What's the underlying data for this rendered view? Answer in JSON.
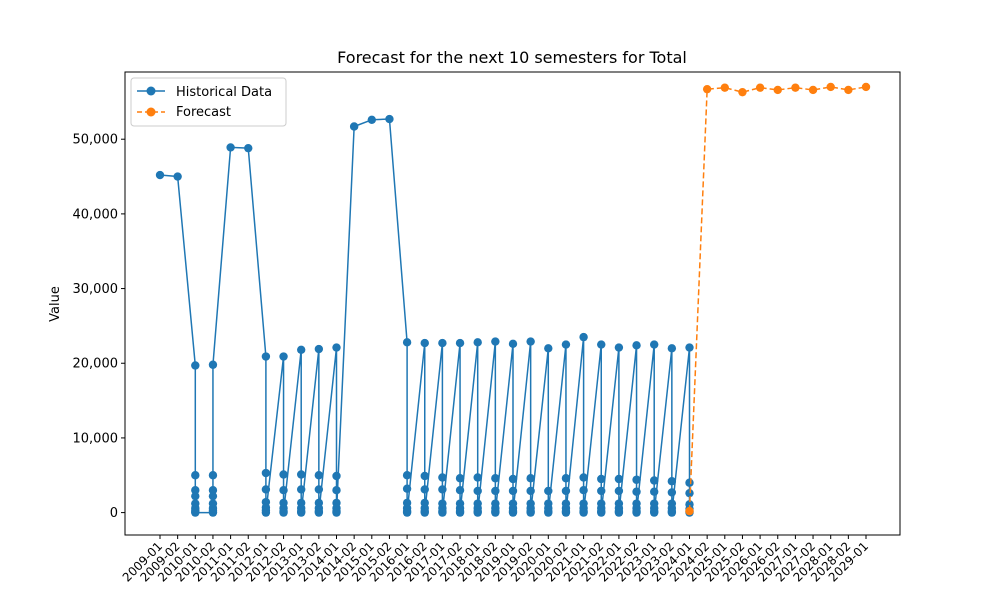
{
  "chart_data": {
    "type": "line",
    "title": "Forecast for the next 10 semesters for Total",
    "xlabel": "",
    "ylabel": "Value",
    "ylim": [
      -3000,
      59000
    ],
    "yticks": [
      0,
      10000,
      20000,
      30000,
      40000,
      50000
    ],
    "ytick_labels": [
      "0",
      "10,000",
      "20,000",
      "30,000",
      "40,000",
      "50,000"
    ],
    "categories": [
      "2009-01",
      "2009-02",
      "2010-01",
      "2010-02",
      "2011-01",
      "2011-02",
      "2012-01",
      "2012-02",
      "2013-01",
      "2013-02",
      "2014-01",
      "2014-02",
      "2015-01",
      "2015-02",
      "2016-01",
      "2016-02",
      "2017-01",
      "2017-02",
      "2018-01",
      "2018-02",
      "2019-01",
      "2019-02",
      "2020-01",
      "2020-02",
      "2021-01",
      "2021-02",
      "2022-01",
      "2022-02",
      "2023-01",
      "2023-02",
      "2024-01",
      "2024-02",
      "2025-01",
      "2025-02",
      "2026-01",
      "2026-02",
      "2027-01",
      "2027-02",
      "2028-01",
      "2028-02",
      "2029-01"
    ],
    "legend": {
      "placement": "top-left",
      "entries": [
        "Historical Data",
        "Forecast"
      ]
    },
    "grid": false,
    "series": [
      {
        "name": "Historical Data",
        "color": "#1f77b4",
        "style": "solid",
        "marker": "circle",
        "points": [
          [
            "2009-01",
            45200
          ],
          [
            "2009-02",
            45000
          ],
          [
            "2010-01",
            19700
          ],
          [
            "2010-01",
            5000
          ],
          [
            "2010-01",
            3000
          ],
          [
            "2010-01",
            2200
          ],
          [
            "2010-01",
            1200
          ],
          [
            "2010-01",
            600
          ],
          [
            "2010-01",
            300
          ],
          [
            "2010-01",
            100
          ],
          [
            "2010-01",
            0
          ],
          [
            "2010-02",
            0
          ],
          [
            "2010-02",
            100
          ],
          [
            "2010-02",
            300
          ],
          [
            "2010-02",
            600
          ],
          [
            "2010-02",
            1200
          ],
          [
            "2010-02",
            2200
          ],
          [
            "2010-02",
            3000
          ],
          [
            "2010-02",
            5000
          ],
          [
            "2010-02",
            19800
          ],
          [
            "2011-01",
            48900
          ],
          [
            "2011-02",
            48800
          ],
          [
            "2012-01",
            20900
          ],
          [
            "2012-01",
            5300
          ],
          [
            "2012-01",
            3100
          ],
          [
            "2012-01",
            1400
          ],
          [
            "2012-01",
            700
          ],
          [
            "2012-01",
            300
          ],
          [
            "2012-01",
            0
          ],
          [
            "2012-02",
            20900
          ],
          [
            "2012-02",
            5100
          ],
          [
            "2012-02",
            3000
          ],
          [
            "2012-02",
            1300
          ],
          [
            "2012-02",
            600
          ],
          [
            "2012-02",
            200
          ],
          [
            "2012-02",
            0
          ],
          [
            "2013-01",
            21800
          ],
          [
            "2013-01",
            5100
          ],
          [
            "2013-01",
            3100
          ],
          [
            "2013-01",
            1300
          ],
          [
            "2013-01",
            600
          ],
          [
            "2013-01",
            200
          ],
          [
            "2013-01",
            0
          ],
          [
            "2013-02",
            21900
          ],
          [
            "2013-02",
            5000
          ],
          [
            "2013-02",
            3100
          ],
          [
            "2013-02",
            1300
          ],
          [
            "2013-02",
            600
          ],
          [
            "2013-02",
            200
          ],
          [
            "2013-02",
            0
          ],
          [
            "2014-01",
            22100
          ],
          [
            "2014-01",
            4900
          ],
          [
            "2014-01",
            3000
          ],
          [
            "2014-01",
            1300
          ],
          [
            "2014-01",
            600
          ],
          [
            "2014-01",
            200
          ],
          [
            "2014-01",
            0
          ],
          [
            "2014-02",
            51700
          ],
          [
            "2015-01",
            52600
          ],
          [
            "2015-02",
            52700
          ],
          [
            "2016-01",
            22800
          ],
          [
            "2016-01",
            5000
          ],
          [
            "2016-01",
            3200
          ],
          [
            "2016-01",
            1300
          ],
          [
            "2016-01",
            600
          ],
          [
            "2016-01",
            200
          ],
          [
            "2016-01",
            0
          ],
          [
            "2016-02",
            22700
          ],
          [
            "2016-02",
            4900
          ],
          [
            "2016-02",
            3100
          ],
          [
            "2016-02",
            1300
          ],
          [
            "2016-02",
            600
          ],
          [
            "2016-02",
            200
          ],
          [
            "2016-02",
            0
          ],
          [
            "2017-01",
            22700
          ],
          [
            "2017-01",
            4700
          ],
          [
            "2017-01",
            3100
          ],
          [
            "2017-01",
            1200
          ],
          [
            "2017-01",
            600
          ],
          [
            "2017-01",
            200
          ],
          [
            "2017-01",
            0
          ],
          [
            "2017-02",
            22700
          ],
          [
            "2017-02",
            4600
          ],
          [
            "2017-02",
            3000
          ],
          [
            "2017-02",
            1200
          ],
          [
            "2017-02",
            600
          ],
          [
            "2017-02",
            200
          ],
          [
            "2017-02",
            0
          ],
          [
            "2018-01",
            22800
          ],
          [
            "2018-01",
            4700
          ],
          [
            "2018-01",
            2900
          ],
          [
            "2018-01",
            1200
          ],
          [
            "2018-01",
            600
          ],
          [
            "2018-01",
            200
          ],
          [
            "2018-01",
            0
          ],
          [
            "2018-02",
            22900
          ],
          [
            "2018-02",
            4600
          ],
          [
            "2018-02",
            2900
          ],
          [
            "2018-02",
            1200
          ],
          [
            "2018-02",
            600
          ],
          [
            "2018-02",
            200
          ],
          [
            "2018-02",
            0
          ],
          [
            "2019-01",
            22600
          ],
          [
            "2019-01",
            4500
          ],
          [
            "2019-01",
            2900
          ],
          [
            "2019-01",
            1200
          ],
          [
            "2019-01",
            600
          ],
          [
            "2019-01",
            200
          ],
          [
            "2019-01",
            0
          ],
          [
            "2019-02",
            22900
          ],
          [
            "2019-02",
            4600
          ],
          [
            "2019-02",
            2900
          ],
          [
            "2019-02",
            1200
          ],
          [
            "2019-02",
            600
          ],
          [
            "2019-02",
            200
          ],
          [
            "2019-02",
            0
          ],
          [
            "2020-01",
            22000
          ],
          [
            "2020-01",
            2900
          ],
          [
            "2020-01",
            1200
          ],
          [
            "2020-01",
            600
          ],
          [
            "2020-01",
            200
          ],
          [
            "2020-01",
            0
          ],
          [
            "2020-02",
            22500
          ],
          [
            "2020-02",
            4600
          ],
          [
            "2020-02",
            2900
          ],
          [
            "2020-02",
            1200
          ],
          [
            "2020-02",
            600
          ],
          [
            "2020-02",
            200
          ],
          [
            "2020-02",
            0
          ],
          [
            "2021-01",
            23500
          ],
          [
            "2021-01",
            4700
          ],
          [
            "2021-01",
            3000
          ],
          [
            "2021-01",
            1200
          ],
          [
            "2021-01",
            600
          ],
          [
            "2021-01",
            200
          ],
          [
            "2021-01",
            0
          ],
          [
            "2021-02",
            22500
          ],
          [
            "2021-02",
            4500
          ],
          [
            "2021-02",
            2900
          ],
          [
            "2021-02",
            1200
          ],
          [
            "2021-02",
            600
          ],
          [
            "2021-02",
            200
          ],
          [
            "2021-02",
            0
          ],
          [
            "2022-01",
            22100
          ],
          [
            "2022-01",
            4500
          ],
          [
            "2022-01",
            2900
          ],
          [
            "2022-01",
            1200
          ],
          [
            "2022-01",
            600
          ],
          [
            "2022-01",
            200
          ],
          [
            "2022-01",
            0
          ],
          [
            "2022-02",
            22400
          ],
          [
            "2022-02",
            4400
          ],
          [
            "2022-02",
            2800
          ],
          [
            "2022-02",
            1200
          ],
          [
            "2022-02",
            600
          ],
          [
            "2022-02",
            200
          ],
          [
            "2022-02",
            0
          ],
          [
            "2023-01",
            22500
          ],
          [
            "2023-01",
            4300
          ],
          [
            "2023-01",
            2800
          ],
          [
            "2023-01",
            1200
          ],
          [
            "2023-01",
            600
          ],
          [
            "2023-01",
            200
          ],
          [
            "2023-01",
            0
          ],
          [
            "2023-02",
            22000
          ],
          [
            "2023-02",
            4200
          ],
          [
            "2023-02",
            2700
          ],
          [
            "2023-02",
            1200
          ],
          [
            "2023-02",
            600
          ],
          [
            "2023-02",
            200
          ],
          [
            "2023-02",
            0
          ],
          [
            "2024-01",
            22100
          ],
          [
            "2024-01",
            4000
          ],
          [
            "2024-01",
            2600
          ],
          [
            "2024-01",
            1100
          ],
          [
            "2024-01",
            500
          ],
          [
            "2024-01",
            200
          ],
          [
            "2024-01",
            0
          ]
        ]
      },
      {
        "name": "Forecast",
        "color": "#ff7f0e",
        "style": "dashed",
        "marker": "circle",
        "points": [
          [
            "2024-01",
            200
          ],
          [
            "2024-02",
            56700
          ],
          [
            "2025-01",
            56900
          ],
          [
            "2025-02",
            56300
          ],
          [
            "2026-01",
            56900
          ],
          [
            "2026-02",
            56600
          ],
          [
            "2027-01",
            56900
          ],
          [
            "2027-02",
            56600
          ],
          [
            "2028-01",
            57000
          ],
          [
            "2028-02",
            56600
          ],
          [
            "2029-01",
            57000
          ]
        ]
      }
    ]
  }
}
